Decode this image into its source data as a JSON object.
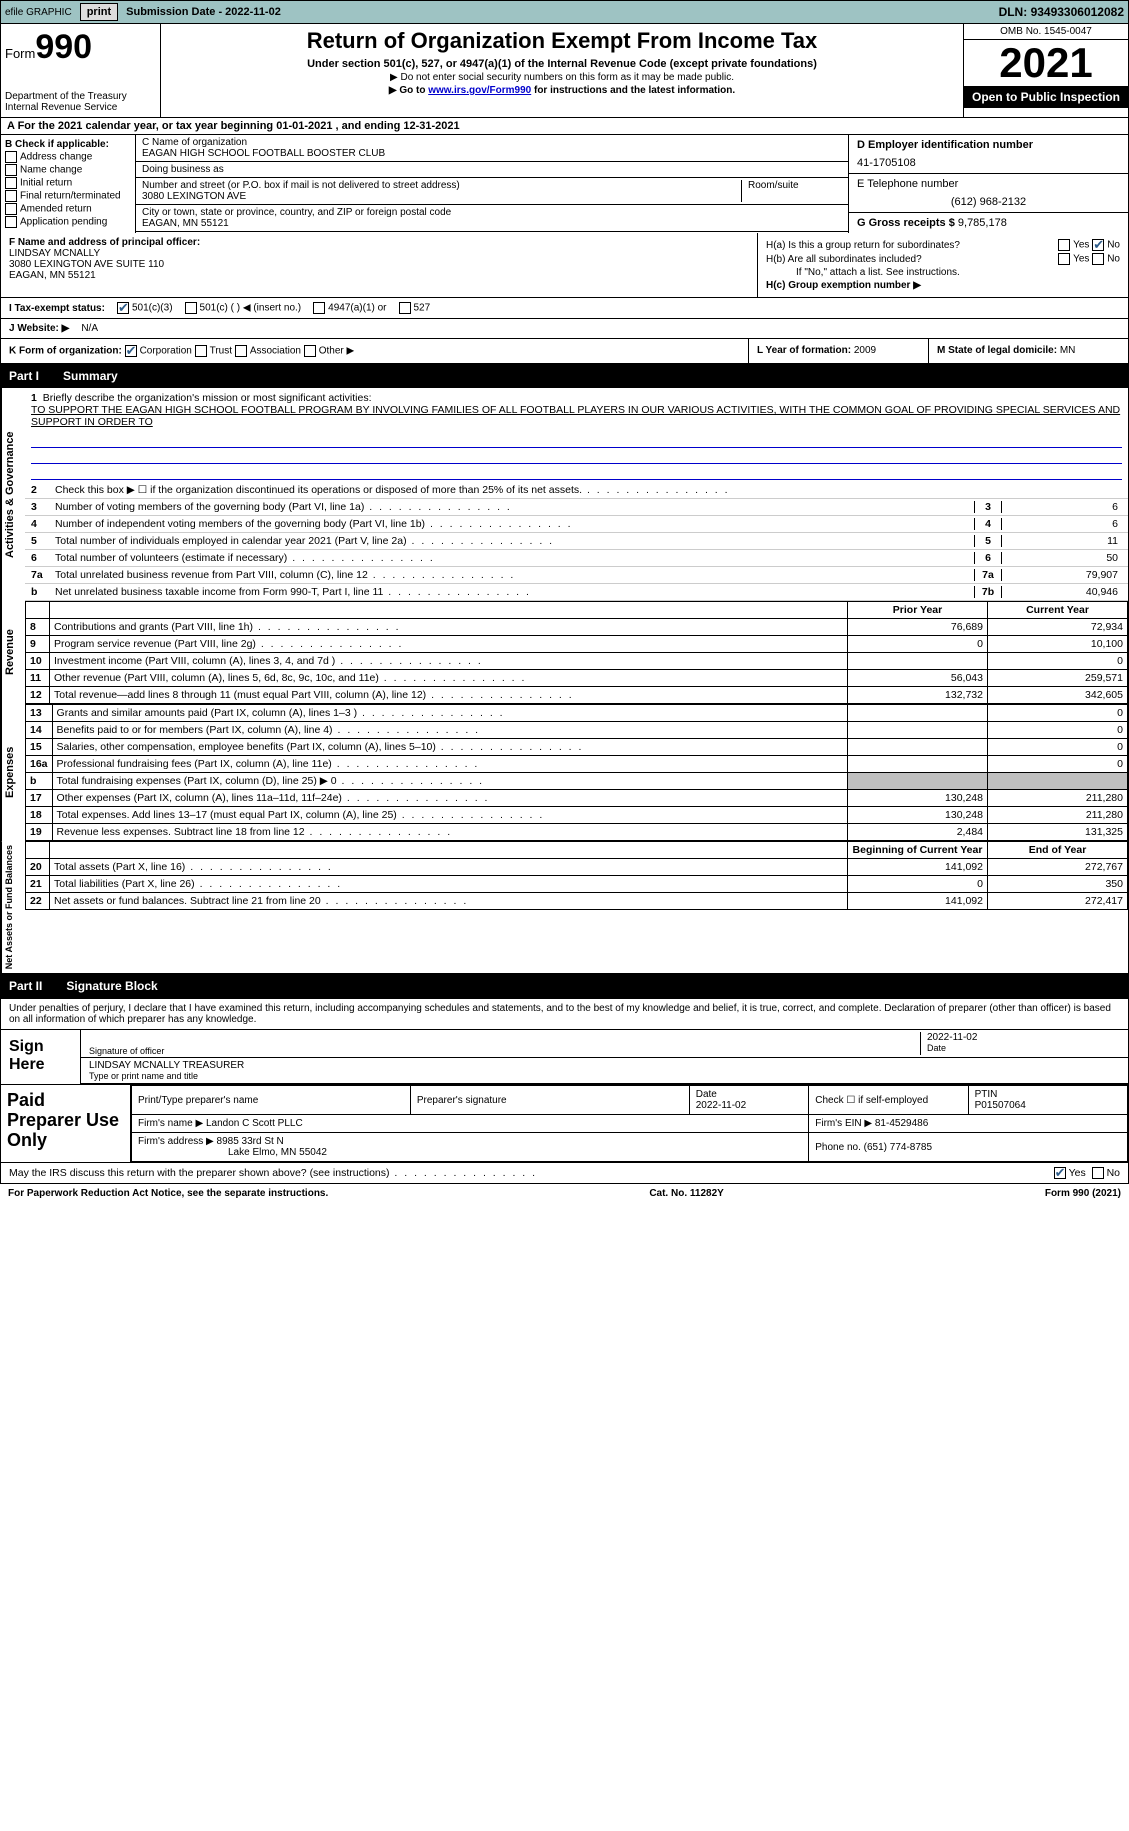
{
  "topbar": {
    "efile": "efile GRAPHIC",
    "print": "print",
    "submission_label": "Submission Date - ",
    "submission_date": "2022-11-02",
    "dln_label": "DLN: ",
    "dln": "93493306012082"
  },
  "header": {
    "form_word": "Form",
    "form_num": "990",
    "dept1": "Department of the Treasury",
    "dept2": "Internal Revenue Service",
    "title": "Return of Organization Exempt From Income Tax",
    "subtitle": "Under section 501(c), 527, or 4947(a)(1) of the Internal Revenue Code (except private foundations)",
    "note1": "▶ Do not enter social security numbers on this form as it may be made public.",
    "note2_pre": "▶ Go to ",
    "note2_link": "www.irs.gov/Form990",
    "note2_post": " for instructions and the latest information.",
    "omb": "OMB No. 1545-0047",
    "year": "2021",
    "inspection": "Open to Public Inspection"
  },
  "row_a": {
    "text_pre": "A For the 2021 calendar year, or tax year beginning ",
    "begin": "01-01-2021",
    "mid": " , and ending ",
    "end": "12-31-2021"
  },
  "col_b": {
    "label": "B Check if applicable:",
    "opts": [
      "Address change",
      "Name change",
      "Initial return",
      "Final return/terminated",
      "Amended return",
      "Application pending"
    ]
  },
  "col_c": {
    "name_label": "C Name of organization",
    "name": "EAGAN HIGH SCHOOL FOOTBALL BOOSTER CLUB",
    "dba_label": "Doing business as",
    "dba": "",
    "addr_label": "Number and street (or P.O. box if mail is not delivered to street address)",
    "room_label": "Room/suite",
    "addr": "3080 LEXINGTON AVE",
    "city_label": "City or town, state or province, country, and ZIP or foreign postal code",
    "city": "EAGAN, MN  55121"
  },
  "col_d": {
    "ein_label": "D Employer identification number",
    "ein": "41-1705108",
    "phone_label": "E Telephone number",
    "phone": "(612) 968-2132",
    "gross_label": "G Gross receipts $ ",
    "gross": "9,785,178"
  },
  "row_fh": {
    "f_label": "F Name and address of principal officer:",
    "f_name": "LINDSAY MCNALLY",
    "f_addr1": "3080 LEXINGTON AVE SUITE 110",
    "f_addr2": "EAGAN, MN  55121",
    "ha_label": "H(a)  Is this a group return for subordinates?",
    "hb_label": "H(b)  Are all subordinates included?",
    "hb_note": "If \"No,\" attach a list. See instructions.",
    "hc_label": "H(c)  Group exemption number ▶",
    "yes": "Yes",
    "no": "No"
  },
  "status": {
    "i_label": "I  Tax-exempt status:",
    "s1": "501(c)(3)",
    "s2": "501(c) (   ) ◀ (insert no.)",
    "s3": "4947(a)(1) or",
    "s4": "527",
    "j_label": "J  Website: ▶",
    "website": "N/A"
  },
  "row_k": {
    "k_label": "K Form of organization:",
    "k_opts": [
      "Corporation",
      "Trust",
      "Association",
      "Other ▶"
    ],
    "l_label": "L Year of formation: ",
    "l_val": "2009",
    "m_label": "M State of legal domicile: ",
    "m_val": "MN"
  },
  "part1": {
    "label": "Part I",
    "title": "Summary"
  },
  "mission": {
    "num": "1",
    "label": "Briefly describe the organization's mission or most significant activities:",
    "text": "TO SUPPORT THE EAGAN HIGH SCHOOL FOOTBALL PROGRAM BY INVOLVING FAMILIES OF ALL FOOTBALL PLAYERS IN OUR VARIOUS ACTIVITIES, WITH THE COMMON GOAL OF PROVIDING SPECIAL SERVICES AND SUPPORT IN ORDER TO"
  },
  "gov_lines": [
    {
      "n": "2",
      "d": "Check this box ▶ ☐ if the organization discontinued its operations or disposed of more than 25% of its net assets.",
      "box": "",
      "v": ""
    },
    {
      "n": "3",
      "d": "Number of voting members of the governing body (Part VI, line 1a)",
      "box": "3",
      "v": "6"
    },
    {
      "n": "4",
      "d": "Number of independent voting members of the governing body (Part VI, line 1b)",
      "box": "4",
      "v": "6"
    },
    {
      "n": "5",
      "d": "Total number of individuals employed in calendar year 2021 (Part V, line 2a)",
      "box": "5",
      "v": "11"
    },
    {
      "n": "6",
      "d": "Total number of volunteers (estimate if necessary)",
      "box": "6",
      "v": "50"
    },
    {
      "n": "7a",
      "d": "Total unrelated business revenue from Part VIII, column (C), line 12",
      "box": "7a",
      "v": "79,907"
    },
    {
      "n": "b",
      "d": "Net unrelated business taxable income from Form 990-T, Part I, line 11",
      "box": "7b",
      "v": "40,946"
    }
  ],
  "table_hdr": {
    "prior": "Prior Year",
    "curr": "Current Year",
    "begin": "Beginning of Current Year",
    "end": "End of Year"
  },
  "revenue": [
    {
      "n": "8",
      "d": "Contributions and grants (Part VIII, line 1h)",
      "p": "76,689",
      "c": "72,934"
    },
    {
      "n": "9",
      "d": "Program service revenue (Part VIII, line 2g)",
      "p": "0",
      "c": "10,100"
    },
    {
      "n": "10",
      "d": "Investment income (Part VIII, column (A), lines 3, 4, and 7d )",
      "p": "",
      "c": "0"
    },
    {
      "n": "11",
      "d": "Other revenue (Part VIII, column (A), lines 5, 6d, 8c, 9c, 10c, and 11e)",
      "p": "56,043",
      "c": "259,571"
    },
    {
      "n": "12",
      "d": "Total revenue—add lines 8 through 11 (must equal Part VIII, column (A), line 12)",
      "p": "132,732",
      "c": "342,605"
    }
  ],
  "expenses": [
    {
      "n": "13",
      "d": "Grants and similar amounts paid (Part IX, column (A), lines 1–3 )",
      "p": "",
      "c": "0"
    },
    {
      "n": "14",
      "d": "Benefits paid to or for members (Part IX, column (A), line 4)",
      "p": "",
      "c": "0"
    },
    {
      "n": "15",
      "d": "Salaries, other compensation, employee benefits (Part IX, column (A), lines 5–10)",
      "p": "",
      "c": "0"
    },
    {
      "n": "16a",
      "d": "Professional fundraising fees (Part IX, column (A), line 11e)",
      "p": "",
      "c": "0"
    },
    {
      "n": "b",
      "d": "Total fundraising expenses (Part IX, column (D), line 25) ▶ 0",
      "p": "shaded",
      "c": "shaded"
    },
    {
      "n": "17",
      "d": "Other expenses (Part IX, column (A), lines 11a–11d, 11f–24e)",
      "p": "130,248",
      "c": "211,280"
    },
    {
      "n": "18",
      "d": "Total expenses. Add lines 13–17 (must equal Part IX, column (A), line 25)",
      "p": "130,248",
      "c": "211,280"
    },
    {
      "n": "19",
      "d": "Revenue less expenses. Subtract line 18 from line 12",
      "p": "2,484",
      "c": "131,325"
    }
  ],
  "netassets": [
    {
      "n": "20",
      "d": "Total assets (Part X, line 16)",
      "p": "141,092",
      "c": "272,767"
    },
    {
      "n": "21",
      "d": "Total liabilities (Part X, line 26)",
      "p": "0",
      "c": "350"
    },
    {
      "n": "22",
      "d": "Net assets or fund balances. Subtract line 21 from line 20",
      "p": "141,092",
      "c": "272,417"
    }
  ],
  "sides": {
    "gov": "Activities & Governance",
    "rev": "Revenue",
    "exp": "Expenses",
    "net": "Net Assets or Fund Balances"
  },
  "part2": {
    "label": "Part II",
    "title": "Signature Block",
    "decl": "Under penalties of perjury, I declare that I have examined this return, including accompanying schedules and statements, and to the best of my knowledge and belief, it is true, correct, and complete. Declaration of preparer (other than officer) is based on all information of which preparer has any knowledge."
  },
  "sign": {
    "here": "Sign Here",
    "sig_officer": "Signature of officer",
    "date_label": "Date",
    "date": "2022-11-02",
    "name": "LINDSAY MCNALLY TREASURER",
    "name_label": "Type or print name and title"
  },
  "prep": {
    "title": "Paid Preparer Use Only",
    "h1": "Print/Type preparer's name",
    "h2": "Preparer's signature",
    "h3": "Date",
    "h3v": "2022-11-02",
    "h4": "Check ☐ if self-employed",
    "h5": "PTIN",
    "h5v": "P01507064",
    "firm_name_label": "Firm's name   ▶ ",
    "firm_name": "Landon C Scott PLLC",
    "firm_ein_label": "Firm's EIN ▶ ",
    "firm_ein": "81-4529486",
    "firm_addr_label": "Firm's address ▶ ",
    "firm_addr1": "8985 33rd St N",
    "firm_addr2": "Lake Elmo, MN  55042",
    "phone_label": "Phone no. ",
    "phone": "(651) 774-8785"
  },
  "footer": {
    "discuss": "May the IRS discuss this return with the preparer shown above? (see instructions)",
    "yes": "Yes",
    "no": "No",
    "paperwork": "For Paperwork Reduction Act Notice, see the separate instructions.",
    "cat": "Cat. No. 11282Y",
    "form": "Form 990 (2021)"
  }
}
